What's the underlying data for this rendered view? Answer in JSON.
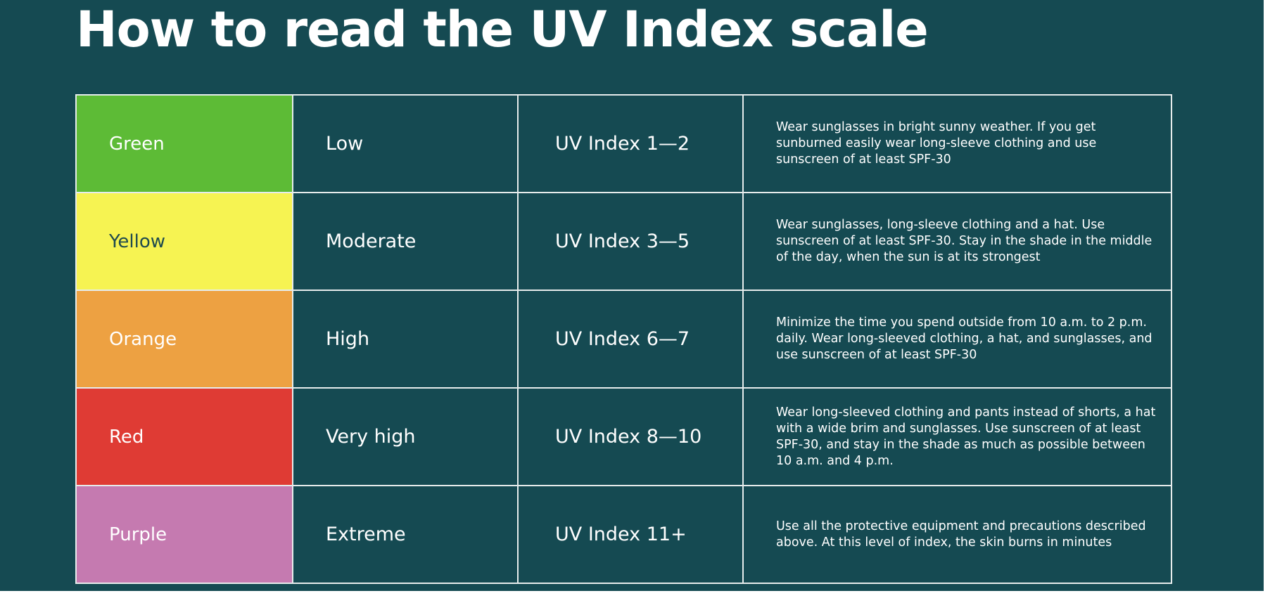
{
  "title": "How to read the UV Index scale",
  "colors": {
    "background": "#154a52",
    "grid": "#e6ecec",
    "text": "#ffffff"
  },
  "rows": [
    {
      "color_name": "Green",
      "swatch": "#5dbb36",
      "text_color": "#ffffff",
      "level": "Low",
      "index": "UV Index 1—2",
      "advice": "Wear sunglasses in bright sunny weather. If you get sunburned easily wear long-sleeve clothing and use sunscreen of at least SPF-30"
    },
    {
      "color_name": "Yellow",
      "swatch": "#f6f352",
      "text_color": "#1e4a4e",
      "level": "Moderate",
      "index": "UV Index 3—5",
      "advice": "Wear sunglasses, long-sleeve clothing and a hat. Use sunscreen of at least SPF-30. Stay in the shade in the middle of the day, when the sun is at its strongest"
    },
    {
      "color_name": "Orange",
      "swatch": "#eda142",
      "text_color": "#ffffff",
      "level": "High",
      "index": "UV Index 6—7",
      "advice": "Minimize the time you spend outside from 10 a.m. to 2 p.m. daily. Wear long-sleeved clothing, a hat, and sunglasses, and use sunscreen of at least SPF-30"
    },
    {
      "color_name": "Red",
      "swatch": "#df3b34",
      "text_color": "#ffffff",
      "level": "Very high",
      "index": "UV Index 8—10",
      "advice": "Wear long-sleeved clothing and pants instead of shorts, a hat with a wide brim and sunglasses. Use sunscreen of at least SPF-30, and stay in the shade as much as possible between 10 a.m. and 4 p.m."
    },
    {
      "color_name": "Purple",
      "swatch": "#c57ab0",
      "text_color": "#ffffff",
      "level": "Extreme",
      "index": "UV Index 11+",
      "advice": "Use all the protective equipment and precautions described above. At this level of index, the skin burns in minutes"
    }
  ]
}
